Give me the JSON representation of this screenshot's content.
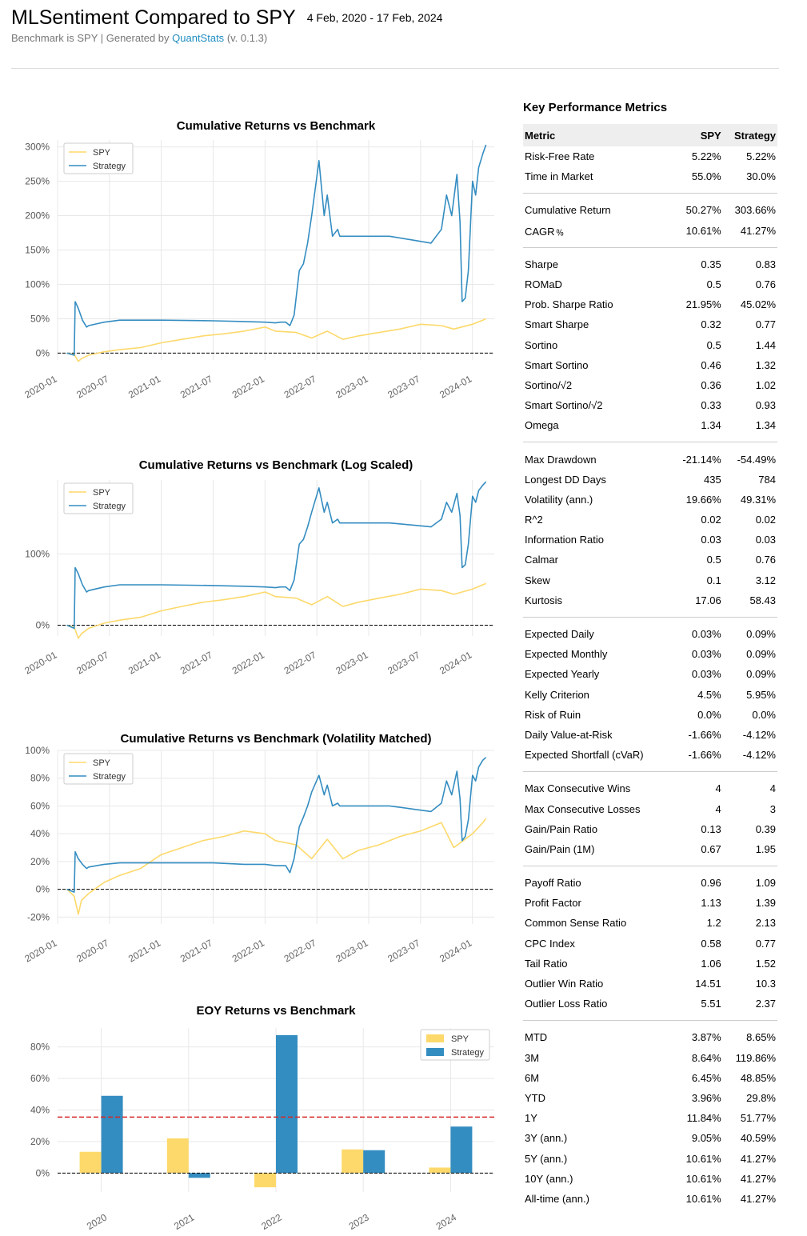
{
  "header": {
    "title": "MLSentiment Compared to SPY",
    "date_range": "4 Feb, 2020 - 17 Feb, 2024",
    "subtitle_prefix": "Benchmark is SPY | Generated by ",
    "generator": "QuantStats",
    "version": "(v. 0.1.3)"
  },
  "colors": {
    "spy": "#fdd96b",
    "strategy": "#348dc1",
    "mean_line": "#d62728"
  },
  "chart_data": [
    {
      "id": "cum",
      "type": "line",
      "title": "Cumulative Returns vs Benchmark",
      "ylim": [
        -10,
        310
      ],
      "yticks": [
        0,
        50,
        100,
        150,
        200,
        250,
        300
      ],
      "ytick_labels": [
        "0%",
        "50%",
        "100%",
        "150%",
        "200%",
        "250%",
        "300%"
      ],
      "xtick_labels": [
        "2020-01",
        "2020-07",
        "2021-01",
        "2021-07",
        "2022-01",
        "2022-07",
        "2023-01",
        "2023-07",
        "2024-01"
      ],
      "grid": true,
      "legend": "top-left",
      "series": [
        {
          "name": "SPY",
          "x": [
            2020.09,
            2020.16,
            2020.2,
            2020.23,
            2020.3,
            2020.45,
            2020.6,
            2020.8,
            2021.0,
            2021.2,
            2021.4,
            2021.6,
            2021.8,
            2022.0,
            2022.1,
            2022.3,
            2022.45,
            2022.6,
            2022.75,
            2022.9,
            2023.1,
            2023.3,
            2023.5,
            2023.7,
            2023.82,
            2024.0,
            2024.1,
            2024.13
          ],
          "values": [
            0,
            -2,
            -12,
            -8,
            -3,
            2,
            5,
            8,
            15,
            20,
            25,
            28,
            32,
            38,
            32,
            30,
            22,
            32,
            20,
            25,
            30,
            35,
            42,
            40,
            35,
            42,
            48,
            50
          ]
        },
        {
          "name": "Strategy",
          "x": [
            2020.09,
            2020.16,
            2020.17,
            2020.2,
            2020.24,
            2020.28,
            2020.3,
            2020.45,
            2020.6,
            2021.0,
            2021.5,
            2021.8,
            2022.0,
            2022.1,
            2022.15,
            2022.2,
            2022.24,
            2022.28,
            2022.33,
            2022.37,
            2022.41,
            2022.45,
            2022.52,
            2022.57,
            2022.6,
            2022.65,
            2022.7,
            2022.72,
            2022.9,
            2023.2,
            2023.4,
            2023.6,
            2023.7,
            2023.75,
            2023.8,
            2023.85,
            2023.88,
            2023.9,
            2023.93,
            2023.96,
            2024.0,
            2024.03,
            2024.06,
            2024.1,
            2024.13
          ],
          "values": [
            0,
            -3,
            75,
            65,
            48,
            38,
            40,
            45,
            48,
            48,
            47,
            46,
            45,
            44,
            45,
            45,
            40,
            55,
            120,
            130,
            160,
            200,
            280,
            200,
            230,
            170,
            180,
            170,
            170,
            170,
            165,
            160,
            180,
            230,
            200,
            260,
            190,
            75,
            80,
            120,
            250,
            230,
            270,
            290,
            303
          ]
        }
      ]
    },
    {
      "id": "log",
      "type": "line",
      "title": "Cumulative Returns vs Benchmark (Log Scaled)",
      "yscale": "log",
      "ylim": [
        -10,
        310
      ],
      "yticks": [
        0,
        100
      ],
      "ytick_labels": [
        "0%",
        "100%"
      ],
      "xtick_labels": [
        "2020-01",
        "2020-07",
        "2021-01",
        "2021-07",
        "2022-01",
        "2022-07",
        "2023-01",
        "2023-07",
        "2024-01"
      ],
      "grid": true,
      "legend": "top-left",
      "series": [
        {
          "name": "SPY",
          "ref": "cum.0"
        },
        {
          "name": "Strategy",
          "ref": "cum.1"
        }
      ]
    },
    {
      "id": "vol",
      "type": "line",
      "title": "Cumulative Returns vs Benchmark (Volatility Matched)",
      "ylim": [
        -25,
        100
      ],
      "yticks": [
        -20,
        0,
        20,
        40,
        60,
        80,
        100
      ],
      "ytick_labels": [
        "-20%",
        "0%",
        "20%",
        "40%",
        "60%",
        "80%",
        "100%"
      ],
      "xtick_labels": [
        "2020-01",
        "2020-07",
        "2021-01",
        "2021-07",
        "2022-01",
        "2022-07",
        "2023-01",
        "2023-07",
        "2024-01"
      ],
      "grid": true,
      "legend": "top-left",
      "series": [
        {
          "name": "SPY",
          "x": [
            2020.09,
            2020.16,
            2020.2,
            2020.23,
            2020.3,
            2020.45,
            2020.6,
            2020.8,
            2021.0,
            2021.2,
            2021.4,
            2021.6,
            2021.8,
            2022.0,
            2022.1,
            2022.3,
            2022.45,
            2022.6,
            2022.75,
            2022.9,
            2023.1,
            2023.3,
            2023.5,
            2023.7,
            2023.82,
            2024.0,
            2024.1,
            2024.13
          ],
          "values": [
            0,
            -5,
            -18,
            -8,
            -3,
            5,
            10,
            15,
            25,
            30,
            35,
            38,
            42,
            40,
            35,
            32,
            22,
            36,
            22,
            28,
            32,
            38,
            42,
            48,
            30,
            40,
            48,
            51
          ]
        },
        {
          "name": "Strategy",
          "x": [
            2020.09,
            2020.16,
            2020.17,
            2020.2,
            2020.24,
            2020.28,
            2020.3,
            2020.45,
            2020.6,
            2021.0,
            2021.5,
            2021.8,
            2022.0,
            2022.1,
            2022.15,
            2022.2,
            2022.24,
            2022.28,
            2022.33,
            2022.37,
            2022.41,
            2022.45,
            2022.52,
            2022.57,
            2022.6,
            2022.65,
            2022.7,
            2022.72,
            2022.9,
            2023.2,
            2023.4,
            2023.6,
            2023.7,
            2023.75,
            2023.8,
            2023.85,
            2023.88,
            2023.9,
            2023.93,
            2023.96,
            2024.0,
            2024.03,
            2024.06,
            2024.1,
            2024.13
          ],
          "values": [
            0,
            -2,
            27,
            22,
            18,
            15,
            16,
            18,
            19,
            19,
            19,
            18,
            18,
            17,
            17,
            17,
            12,
            22,
            45,
            52,
            60,
            70,
            82,
            68,
            75,
            60,
            62,
            60,
            60,
            60,
            58,
            56,
            62,
            78,
            68,
            85,
            65,
            35,
            38,
            50,
            82,
            78,
            88,
            93,
            95
          ]
        }
      ]
    },
    {
      "id": "eoy",
      "type": "bar",
      "title": "EOY Returns  vs Benchmark",
      "categories": [
        "2020",
        "2021",
        "2022",
        "2023",
        "2024"
      ],
      "ylim": [
        -12,
        92
      ],
      "yticks": [
        0,
        20,
        40,
        60,
        80
      ],
      "ytick_labels": [
        "0%",
        "20%",
        "40%",
        "60%",
        "80%"
      ],
      "mean_line": 35.5,
      "legend": "top-right",
      "series": [
        {
          "name": "SPY",
          "values": [
            13.5,
            22,
            -9,
            15,
            3.5
          ]
        },
        {
          "name": "Strategy",
          "values": [
            49,
            -3,
            87.5,
            14.5,
            29.5
          ]
        }
      ]
    }
  ],
  "metrics": {
    "title": "Key Performance Metrics",
    "columns": [
      "Metric",
      "SPY",
      "Strategy"
    ],
    "groups": [
      [
        [
          "Risk-Free Rate",
          "5.22%",
          "5.22%"
        ],
        [
          "Time in Market",
          "55.0%",
          "30.0%"
        ]
      ],
      [
        [
          "Cumulative Return",
          "50.27%",
          "303.66%"
        ],
        [
          "CAGR﹪",
          "10.61%",
          "41.27%"
        ]
      ],
      [
        [
          "Sharpe",
          "0.35",
          "0.83"
        ],
        [
          "ROMaD",
          "0.5",
          "0.76"
        ],
        [
          "Prob. Sharpe Ratio",
          "21.95%",
          "45.02%"
        ],
        [
          "Smart Sharpe",
          "0.32",
          "0.77"
        ],
        [
          "Sortino",
          "0.5",
          "1.44"
        ],
        [
          "Smart Sortino",
          "0.46",
          "1.32"
        ],
        [
          "Sortino/√2",
          "0.36",
          "1.02"
        ],
        [
          "Smart Sortino/√2",
          "0.33",
          "0.93"
        ],
        [
          "Omega",
          "1.34",
          "1.34"
        ]
      ],
      [
        [
          "Max Drawdown",
          "-21.14%",
          "-54.49%"
        ],
        [
          "Longest DD Days",
          "435",
          "784"
        ],
        [
          "Volatility (ann.)",
          "19.66%",
          "49.31%"
        ],
        [
          "R^2",
          "0.02",
          "0.02"
        ],
        [
          "Information Ratio",
          "0.03",
          "0.03"
        ],
        [
          "Calmar",
          "0.5",
          "0.76"
        ],
        [
          "Skew",
          "0.1",
          "3.12"
        ],
        [
          "Kurtosis",
          "17.06",
          "58.43"
        ]
      ],
      [
        [
          "Expected Daily",
          "0.03%",
          "0.09%"
        ],
        [
          "Expected Monthly",
          "0.03%",
          "0.09%"
        ],
        [
          "Expected Yearly",
          "0.03%",
          "0.09%"
        ],
        [
          "Kelly Criterion",
          "4.5%",
          "5.95%"
        ],
        [
          "Risk of Ruin",
          "0.0%",
          "0.0%"
        ],
        [
          "Daily Value-at-Risk",
          "-1.66%",
          "-4.12%"
        ],
        [
          "Expected Shortfall (cVaR)",
          "-1.66%",
          "-4.12%"
        ]
      ],
      [
        [
          "Max Consecutive Wins",
          "4",
          "4"
        ],
        [
          "Max Consecutive Losses",
          "4",
          "3"
        ],
        [
          "Gain/Pain Ratio",
          "0.13",
          "0.39"
        ],
        [
          "Gain/Pain (1M)",
          "0.67",
          "1.95"
        ]
      ],
      [
        [
          "Payoff Ratio",
          "0.96",
          "1.09"
        ],
        [
          "Profit Factor",
          "1.13",
          "1.39"
        ],
        [
          "Common Sense Ratio",
          "1.2",
          "2.13"
        ],
        [
          "CPC Index",
          "0.58",
          "0.77"
        ],
        [
          "Tail Ratio",
          "1.06",
          "1.52"
        ],
        [
          "Outlier Win Ratio",
          "14.51",
          "10.3"
        ],
        [
          "Outlier Loss Ratio",
          "5.51",
          "2.37"
        ]
      ],
      [
        [
          "MTD",
          "3.87%",
          "8.65%"
        ],
        [
          "3M",
          "8.64%",
          "119.86%"
        ],
        [
          "6M",
          "6.45%",
          "48.85%"
        ],
        [
          "YTD",
          "3.96%",
          "29.8%"
        ],
        [
          "1Y",
          "11.84%",
          "51.77%"
        ],
        [
          "3Y (ann.)",
          "9.05%",
          "40.59%"
        ],
        [
          "5Y (ann.)",
          "10.61%",
          "41.27%"
        ],
        [
          "10Y (ann.)",
          "10.61%",
          "41.27%"
        ],
        [
          "All-time (ann.)",
          "10.61%",
          "41.27%"
        ]
      ]
    ]
  }
}
